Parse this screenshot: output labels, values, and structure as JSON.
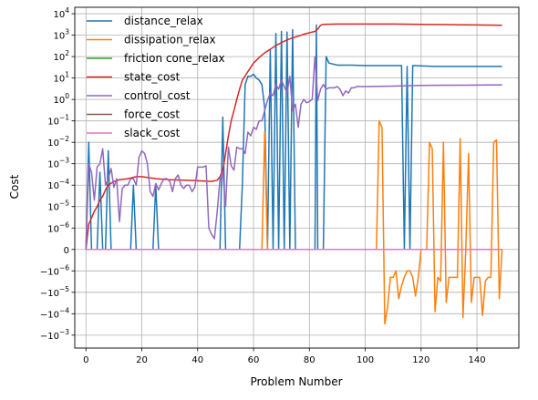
{
  "chart_data": {
    "type": "line",
    "title": "",
    "xlabel": "Problem Number",
    "ylabel": "Cost",
    "yscale": "symlog",
    "linthresh": 1e-06,
    "xlim": [
      -4,
      155
    ],
    "ylim": [
      -0.004,
      20000
    ],
    "grid": true,
    "legend_position": "top-left",
    "x_ticks": [
      0,
      20,
      40,
      60,
      80,
      100,
      120,
      140
    ],
    "x_tick_labels": [
      "0",
      "20",
      "40",
      "60",
      "80",
      "100",
      "120",
      "140"
    ],
    "y_tick_labels": [
      {
        "v": 10000,
        "base": "10",
        "exp": "4"
      },
      {
        "v": 1000,
        "base": "10",
        "exp": "3"
      },
      {
        "v": 100,
        "base": "10",
        "exp": "2"
      },
      {
        "v": 10,
        "base": "10",
        "exp": "1"
      },
      {
        "v": 1,
        "base": "10",
        "exp": "0"
      },
      {
        "v": 0.1,
        "base": "10",
        "exp": "−1"
      },
      {
        "v": 0.01,
        "base": "10",
        "exp": "−2"
      },
      {
        "v": 0.001,
        "base": "10",
        "exp": "−3"
      },
      {
        "v": 0.0001,
        "base": "10",
        "exp": "−4"
      },
      {
        "v": 1e-05,
        "base": "10",
        "exp": "−5"
      },
      {
        "v": 1e-06,
        "base": "10",
        "exp": "−6"
      },
      {
        "v": 0,
        "base": "0",
        "exp": ""
      },
      {
        "v": -1e-06,
        "base": "−10",
        "exp": "−6"
      },
      {
        "v": -1e-05,
        "base": "−10",
        "exp": "−5"
      },
      {
        "v": -0.0001,
        "base": "−10",
        "exp": "−4"
      },
      {
        "v": -0.001,
        "base": "−10",
        "exp": "−3"
      }
    ],
    "series": [
      {
        "name": "distance_relax",
        "color": "#1f77b4",
        "points": [
          [
            0,
            0
          ],
          [
            1,
            0.01
          ],
          [
            2,
            0
          ],
          [
            4,
            0
          ],
          [
            5,
            0.0004
          ],
          [
            6,
            0
          ],
          [
            7,
            0
          ],
          [
            8,
            0.004
          ],
          [
            9,
            0
          ],
          [
            16,
            0
          ],
          [
            17,
            0.0001
          ],
          [
            18,
            0
          ],
          [
            24,
            0
          ],
          [
            25,
            0.0001
          ],
          [
            26,
            0
          ],
          [
            48,
            0
          ],
          [
            49,
            0.15
          ],
          [
            50,
            0
          ],
          [
            55,
            0
          ],
          [
            56,
            0.0001
          ],
          [
            57,
            5
          ],
          [
            58,
            12
          ],
          [
            59,
            12
          ],
          [
            60,
            15
          ],
          [
            61,
            10
          ],
          [
            62,
            8
          ],
          [
            63,
            5
          ],
          [
            64,
            0.4
          ],
          [
            65,
            0
          ],
          [
            66,
            200
          ],
          [
            67,
            0
          ],
          [
            68,
            1200
          ],
          [
            69,
            0
          ],
          [
            70,
            1500
          ],
          [
            71,
            0
          ],
          [
            72,
            1400
          ],
          [
            73,
            0
          ],
          [
            74,
            1800
          ],
          [
            75,
            0
          ],
          [
            82,
            0
          ],
          [
            82.5,
            3000
          ],
          [
            83,
            0
          ],
          [
            85,
            0
          ],
          [
            86,
            100
          ],
          [
            87,
            50
          ],
          [
            90,
            40
          ],
          [
            95,
            40
          ],
          [
            100,
            38
          ],
          [
            110,
            38
          ],
          [
            113,
            38
          ],
          [
            114,
            0
          ],
          [
            115,
            35
          ],
          [
            116,
            0
          ],
          [
            117,
            38
          ],
          [
            125,
            35
          ],
          [
            130,
            35
          ],
          [
            140,
            35
          ],
          [
            149,
            35
          ]
        ]
      },
      {
        "name": "dissipation_relax",
        "color": "#ff7f0e",
        "points": [
          [
            0,
            0
          ],
          [
            63,
            0
          ],
          [
            64,
            0.03
          ],
          [
            65,
            0
          ],
          [
            104,
            0
          ],
          [
            105,
            0.1
          ],
          [
            106,
            0.05
          ],
          [
            107,
            -0.0003
          ],
          [
            108,
            -5e-05
          ],
          [
            109,
            -2e-06
          ],
          [
            110,
            -2e-06
          ],
          [
            111,
            -1e-06
          ],
          [
            112,
            -2e-05
          ],
          [
            113,
            -5e-06
          ],
          [
            114,
            -2e-06
          ],
          [
            115,
            -1e-06
          ],
          [
            116,
            -1e-06
          ],
          [
            117,
            -2e-06
          ],
          [
            118,
            -1.5e-05
          ],
          [
            119,
            -2e-06
          ],
          [
            120,
            0
          ],
          [
            122,
            0
          ],
          [
            123,
            0.01
          ],
          [
            124,
            0.005
          ],
          [
            125,
            -8e-05
          ],
          [
            126,
            -2e-06
          ],
          [
            127,
            -3e-06
          ],
          [
            128,
            0.01
          ],
          [
            129,
            -3e-05
          ],
          [
            130,
            -2e-06
          ],
          [
            131,
            -2e-06
          ],
          [
            132,
            -2e-06
          ],
          [
            133,
            -2e-06
          ],
          [
            134,
            0.015
          ],
          [
            135,
            -0.00015
          ],
          [
            136,
            0
          ],
          [
            137,
            0.003
          ],
          [
            138,
            -3e-05
          ],
          [
            139,
            -2e-06
          ],
          [
            140,
            -2e-06
          ],
          [
            141,
            -2e-06
          ],
          [
            142,
            -0.00012
          ],
          [
            143,
            -3e-06
          ],
          [
            144,
            -2e-06
          ],
          [
            145,
            -2e-06
          ],
          [
            146,
            0.01
          ],
          [
            147,
            0.013
          ],
          [
            148,
            -2e-05
          ],
          [
            149,
            0
          ]
        ]
      },
      {
        "name": "friction cone_relax",
        "color": "#2ca02c",
        "points": [
          [
            0,
            0
          ],
          [
            149,
            0
          ]
        ]
      },
      {
        "name": "state_cost",
        "color": "#d62728",
        "points": [
          [
            0,
            0
          ],
          [
            1,
            1.5e-06
          ],
          [
            2,
            3e-06
          ],
          [
            3,
            6e-06
          ],
          [
            4,
            1e-05
          ],
          [
            5,
            2e-05
          ],
          [
            6,
            3e-05
          ],
          [
            7,
            6e-05
          ],
          [
            8,
            0.0001
          ],
          [
            10,
            0.00015
          ],
          [
            12,
            0.00018
          ],
          [
            15,
            0.0002
          ],
          [
            18,
            0.00025
          ],
          [
            20,
            0.00025
          ],
          [
            25,
            0.0002
          ],
          [
            30,
            0.00018
          ],
          [
            35,
            0.00017
          ],
          [
            40,
            0.00016
          ],
          [
            45,
            0.00015
          ],
          [
            47,
            0.00017
          ],
          [
            48,
            0.00025
          ],
          [
            49,
            0.0005
          ],
          [
            50,
            0.003
          ],
          [
            51,
            0.02
          ],
          [
            52,
            0.1
          ],
          [
            53,
            0.3
          ],
          [
            54,
            1
          ],
          [
            55,
            3
          ],
          [
            56,
            8
          ],
          [
            58,
            20
          ],
          [
            60,
            50
          ],
          [
            62,
            90
          ],
          [
            64,
            150
          ],
          [
            66,
            220
          ],
          [
            68,
            330
          ],
          [
            70,
            450
          ],
          [
            72,
            600
          ],
          [
            74,
            750
          ],
          [
            76,
            900
          ],
          [
            78,
            1100
          ],
          [
            80,
            1300
          ],
          [
            82,
            1500
          ],
          [
            83,
            1900
          ],
          [
            84,
            2900
          ],
          [
            85,
            3200
          ],
          [
            90,
            3300
          ],
          [
            100,
            3300
          ],
          [
            110,
            3300
          ],
          [
            120,
            3200
          ],
          [
            130,
            3100
          ],
          [
            140,
            3000
          ],
          [
            149,
            2900
          ]
        ]
      },
      {
        "name": "control_cost",
        "color": "#9467bd",
        "points": [
          [
            0,
            0
          ],
          [
            1,
            0.001
          ],
          [
            2,
            0.0004
          ],
          [
            3,
            2e-05
          ],
          [
            4,
            0.0007
          ],
          [
            5,
            0.001
          ],
          [
            6,
            0.005
          ],
          [
            7,
            0.0001
          ],
          [
            8,
            0.0002
          ],
          [
            9,
            0.0006
          ],
          [
            10,
            8e-05
          ],
          [
            11,
            0.0002
          ],
          [
            12,
            2e-06
          ],
          [
            13,
            7e-05
          ],
          [
            14,
            0.0001
          ],
          [
            15,
            0.0001
          ],
          [
            16,
            0.0002
          ],
          [
            17,
            0.0002
          ],
          [
            18,
            0.0001
          ],
          [
            19,
            0.002
          ],
          [
            20,
            0.004
          ],
          [
            21,
            0.003
          ],
          [
            22,
            0.001
          ],
          [
            23,
            5e-05
          ],
          [
            24,
            3e-05
          ],
          [
            25,
            0.00012
          ],
          [
            26,
            6e-05
          ],
          [
            27,
            0.00012
          ],
          [
            28,
            0.0002
          ],
          [
            29,
            0.0002
          ],
          [
            30,
            0.00015
          ],
          [
            31,
            5e-05
          ],
          [
            32,
            0.0002
          ],
          [
            33,
            0.0003
          ],
          [
            34,
            0.0001
          ],
          [
            35,
            7e-05
          ],
          [
            36,
            0.0001
          ],
          [
            37,
            0.0001
          ],
          [
            38,
            5e-05
          ],
          [
            39,
            8e-05
          ],
          [
            40,
            0.0007
          ],
          [
            41,
            0.0007
          ],
          [
            42,
            0.0007
          ],
          [
            43,
            0.0008
          ],
          [
            44,
            1e-06
          ],
          [
            45,
            7e-07
          ],
          [
            46,
            5e-07
          ],
          [
            47,
            6e-06
          ],
          [
            48,
            0.0002
          ],
          [
            49,
            0.0004
          ],
          [
            50,
            1e-05
          ],
          [
            51,
            0.006
          ],
          [
            52,
            0.0008
          ],
          [
            53,
            0.0005
          ],
          [
            54,
            0.006
          ],
          [
            55,
            0.005
          ],
          [
            56,
            0.005
          ],
          [
            57,
            0.003
          ],
          [
            58,
            0.03
          ],
          [
            59,
            0.02
          ],
          [
            60,
            0.05
          ],
          [
            61,
            0.04
          ],
          [
            62,
            0.1
          ],
          [
            63,
            0.1
          ],
          [
            64,
            0.3
          ],
          [
            65,
            0.9
          ],
          [
            66,
            2
          ],
          [
            67,
            1.5
          ],
          [
            68,
            5
          ],
          [
            69,
            3
          ],
          [
            70,
            8
          ],
          [
            71,
            4
          ],
          [
            72,
            2
          ],
          [
            73,
            12
          ],
          [
            74,
            0.3
          ],
          [
            75,
            0.6
          ],
          [
            76,
            0.05
          ],
          [
            77,
            0.6
          ],
          [
            78,
            1
          ],
          [
            79,
            0.7
          ],
          [
            80,
            0.8
          ],
          [
            81,
            1
          ],
          [
            82,
            100
          ],
          [
            83,
            0.9
          ],
          [
            84,
            3
          ],
          [
            85,
            5
          ],
          [
            86,
            3
          ],
          [
            87,
            3.5
          ],
          [
            88,
            3.5
          ],
          [
            89,
            3.5
          ],
          [
            90,
            4
          ],
          [
            91,
            3
          ],
          [
            92,
            1.5
          ],
          [
            93,
            2.5
          ],
          [
            94,
            2
          ],
          [
            95,
            3.5
          ],
          [
            96,
            3.5
          ],
          [
            97,
            4
          ],
          [
            100,
            4
          ],
          [
            110,
            4.2
          ],
          [
            120,
            4.5
          ],
          [
            130,
            4.6
          ],
          [
            140,
            4.7
          ],
          [
            149,
            4.8
          ]
        ]
      },
      {
        "name": "force_cost",
        "color": "#8c564b",
        "points": [
          [
            0,
            0
          ],
          [
            149,
            0
          ]
        ]
      },
      {
        "name": "slack_cost",
        "color": "#e377c2",
        "points": [
          [
            0,
            0
          ],
          [
            149,
            0
          ]
        ]
      }
    ]
  }
}
